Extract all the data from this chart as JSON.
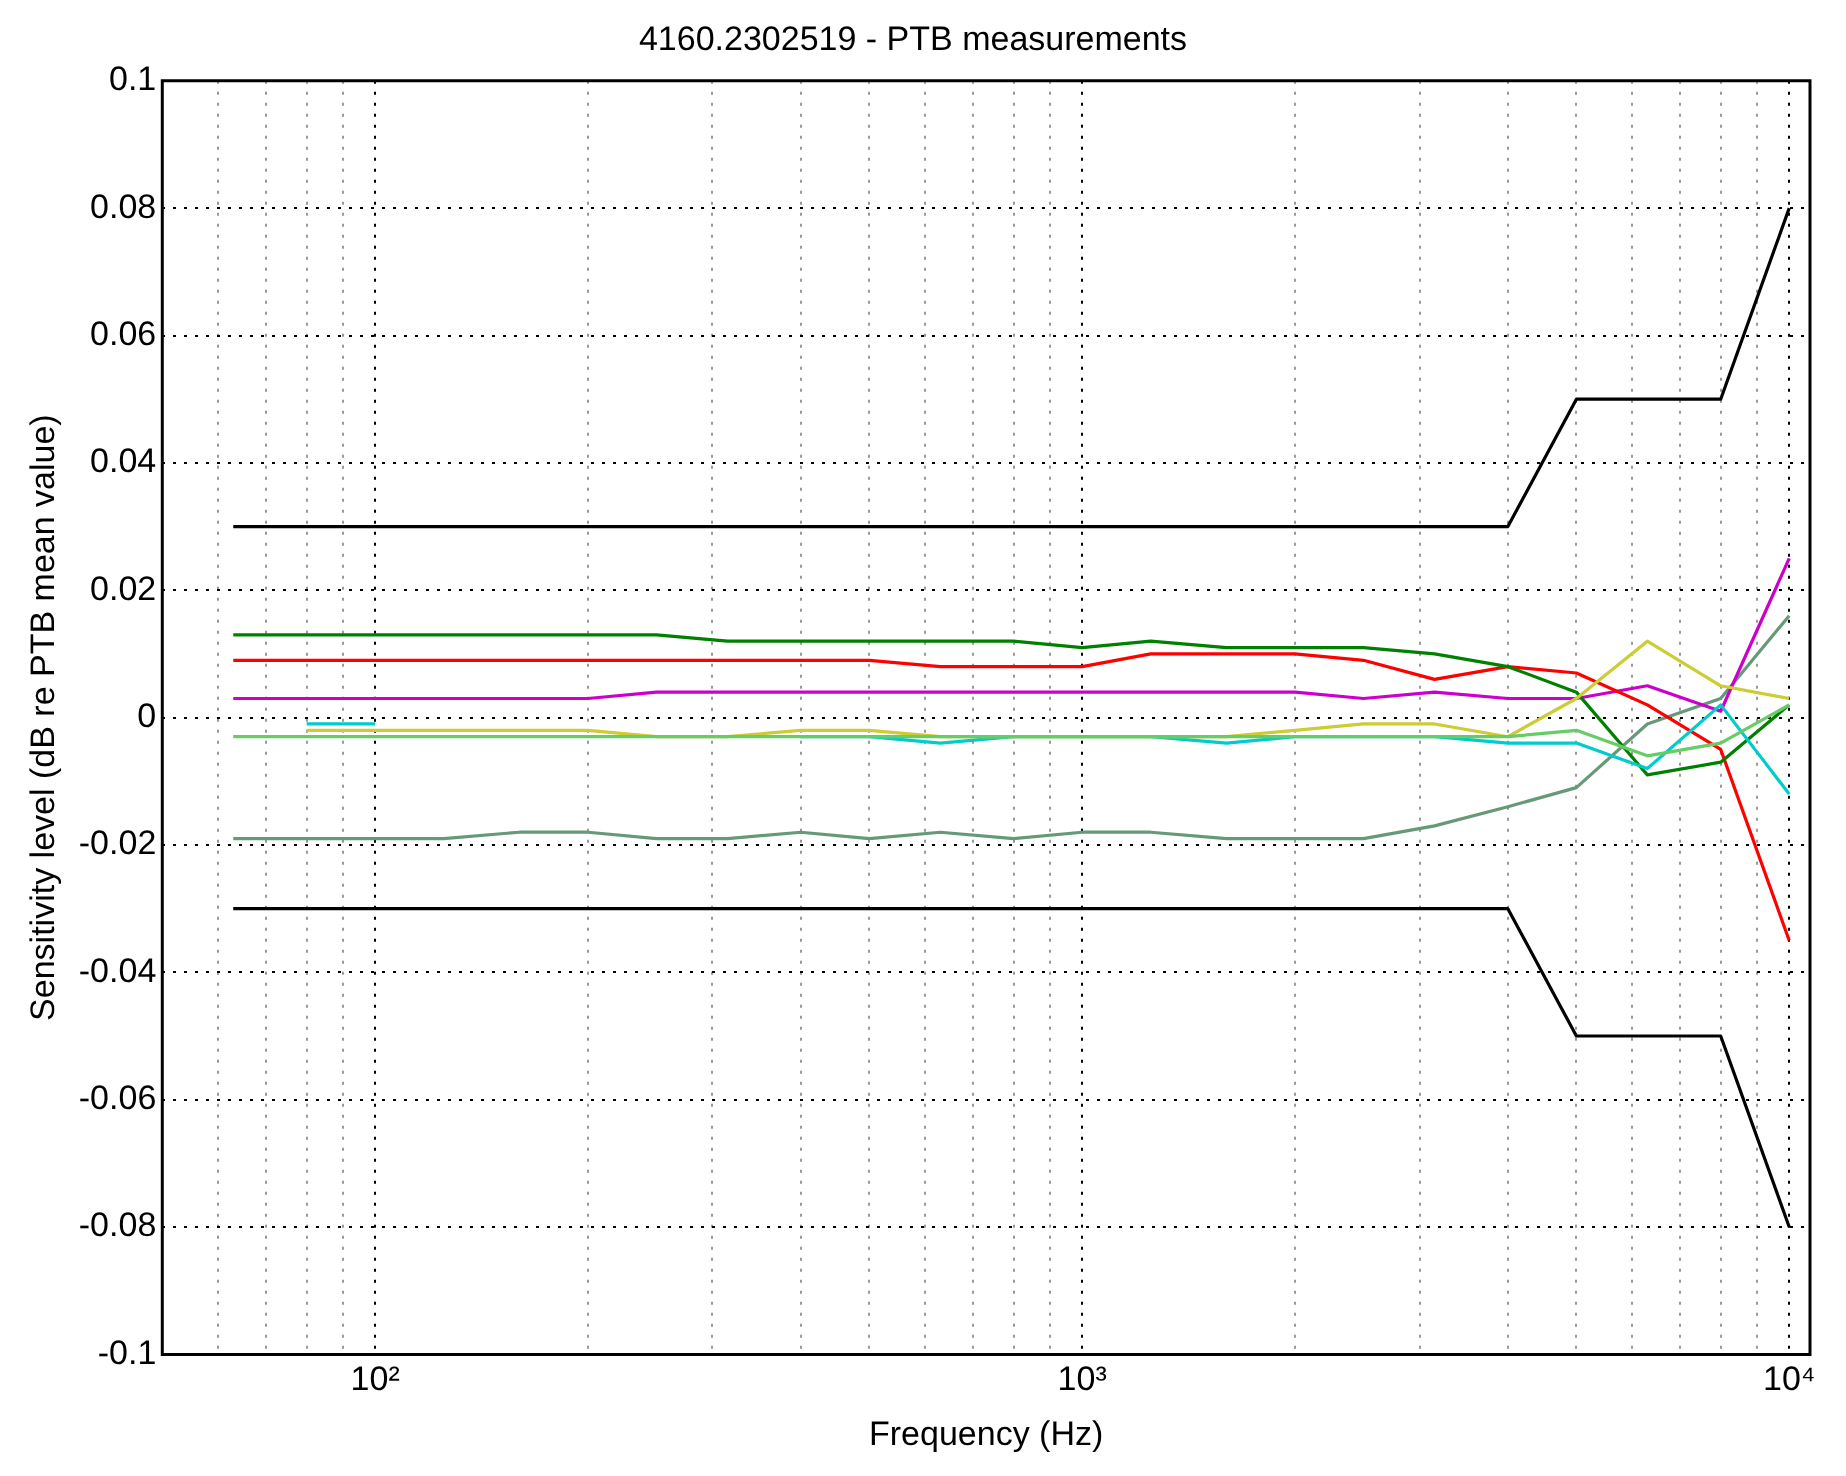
{
  "chart_data": {
    "type": "line",
    "title": "4160.2302519 - PTB measurements",
    "xlabel": "Frequency (Hz)",
    "ylabel": "Sensitivity level (dB re PTB mean value)",
    "x": [
      63,
      80,
      100,
      125,
      160,
      200,
      250,
      315,
      400,
      500,
      630,
      800,
      1000,
      1250,
      1600,
      2000,
      2500,
      3150,
      4000,
      5000,
      6300,
      8000,
      10000
    ],
    "series": [
      {
        "color": "#000000",
        "values": [
          0.03,
          0.03,
          0.03,
          0.03,
          0.03,
          0.03,
          0.03,
          0.03,
          0.03,
          0.03,
          0.03,
          0.03,
          0.03,
          0.03,
          0.03,
          0.03,
          0.03,
          0.03,
          0.03,
          0.05,
          0.05,
          0.05,
          0.08
        ]
      },
      {
        "color": "#000000",
        "values": [
          -0.03,
          -0.03,
          -0.03,
          -0.03,
          -0.03,
          -0.03,
          -0.03,
          -0.03,
          -0.03,
          -0.03,
          -0.03,
          -0.03,
          -0.03,
          -0.03,
          -0.03,
          -0.03,
          -0.03,
          -0.03,
          -0.03,
          -0.05,
          -0.05,
          -0.05,
          -0.08
        ]
      },
      {
        "color": "#66cc66",
        "values": [
          -0.003,
          -0.003,
          -0.003,
          -0.003,
          -0.003,
          -0.003,
          -0.003,
          -0.003,
          -0.003,
          -0.003,
          -0.003,
          -0.003,
          -0.003,
          -0.003,
          -0.003,
          -0.003,
          -0.003,
          -0.003,
          -0.003,
          -0.002,
          -0.006,
          -0.004,
          0.002
        ]
      },
      {
        "color": "#cccc33",
        "values": [
          null,
          -0.002,
          -0.002,
          -0.002,
          -0.002,
          -0.002,
          -0.003,
          -0.003,
          -0.002,
          -0.002,
          -0.003,
          -0.003,
          -0.003,
          -0.003,
          -0.003,
          -0.002,
          -0.001,
          -0.001,
          -0.003,
          0.003,
          0.012,
          0.005,
          0.003
        ]
      },
      {
        "color": "#00cccc",
        "values": [
          null,
          -0.001,
          -0.001,
          null,
          null,
          null,
          null,
          null,
          -0.003,
          -0.003,
          -0.004,
          -0.003,
          -0.003,
          -0.003,
          -0.004,
          -0.003,
          -0.003,
          -0.003,
          -0.004,
          -0.004,
          -0.008,
          0.002,
          -0.012
        ]
      },
      {
        "color": "#008000",
        "values": [
          0.013,
          0.013,
          0.013,
          0.013,
          0.013,
          0.013,
          0.013,
          0.012,
          0.012,
          0.012,
          0.012,
          0.012,
          0.011,
          0.012,
          0.011,
          0.011,
          0.011,
          0.01,
          0.008,
          0.004,
          -0.009,
          -0.007,
          0.002
        ]
      },
      {
        "color": "#ff0000",
        "values": [
          0.009,
          0.009,
          0.009,
          0.009,
          0.009,
          0.009,
          0.009,
          0.009,
          0.009,
          0.009,
          0.008,
          0.008,
          0.008,
          0.01,
          0.01,
          0.01,
          0.009,
          0.006,
          0.008,
          0.007,
          0.002,
          -0.005,
          -0.035
        ]
      },
      {
        "color": "#cc00cc",
        "values": [
          0.003,
          0.003,
          0.003,
          0.003,
          0.003,
          0.003,
          0.004,
          0.004,
          0.004,
          0.004,
          0.004,
          0.004,
          0.004,
          0.004,
          0.004,
          0.004,
          0.003,
          0.004,
          0.003,
          0.003,
          0.005,
          0.001,
          0.025
        ]
      },
      {
        "color": "#669977",
        "values": [
          -0.019,
          -0.019,
          -0.019,
          -0.019,
          -0.018,
          -0.018,
          -0.019,
          -0.019,
          -0.018,
          -0.019,
          -0.018,
          -0.019,
          -0.018,
          -0.018,
          -0.019,
          -0.019,
          -0.019,
          -0.017,
          -0.014,
          -0.011,
          -0.001,
          0.003,
          0.016
        ]
      }
    ],
    "xlim": [
      50,
      10700
    ],
    "log": "x",
    "xticks": [
      {
        "value": 60,
        "label": null
      },
      {
        "value": 70,
        "label": null
      },
      {
        "value": 80,
        "label": null
      },
      {
        "value": 90,
        "label": null
      },
      {
        "value": 100,
        "label": "10²"
      },
      {
        "value": 200,
        "label": null
      },
      {
        "value": 300,
        "label": null
      },
      {
        "value": 400,
        "label": null
      },
      {
        "value": 500,
        "label": null
      },
      {
        "value": 600,
        "label": null
      },
      {
        "value": 700,
        "label": null
      },
      {
        "value": 800,
        "label": null
      },
      {
        "value": 900,
        "label": null
      },
      {
        "value": 1000,
        "label": "10³"
      },
      {
        "value": 2000,
        "label": null
      },
      {
        "value": 3000,
        "label": null
      },
      {
        "value": 4000,
        "label": null
      },
      {
        "value": 5000,
        "label": null
      },
      {
        "value": 6000,
        "label": null
      },
      {
        "value": 7000,
        "label": null
      },
      {
        "value": 8000,
        "label": null
      },
      {
        "value": 9000,
        "label": null
      },
      {
        "value": 10000,
        "label": "10⁴"
      }
    ],
    "ylim": [
      -0.1,
      0.1
    ],
    "yticks": [
      -0.1,
      -0.08,
      -0.06,
      -0.04,
      -0.02,
      0,
      0.02,
      0.04,
      0.06,
      0.08,
      0.1
    ],
    "grid": true,
    "legend": false,
    "marker": "none",
    "line_style": "solid"
  }
}
